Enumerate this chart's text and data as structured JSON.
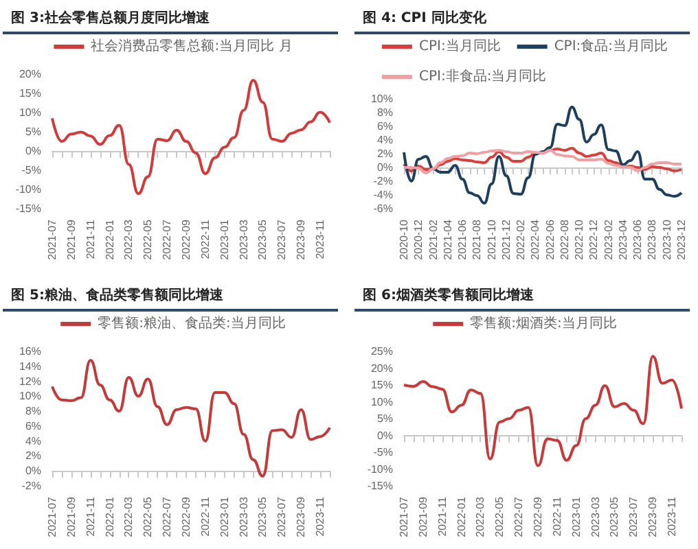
{
  "chart_data": [
    {
      "type": "line",
      "title": "图 3:社会零售总额月度同比增速",
      "legend": "top",
      "marker": "none",
      "categories": [
        "2021-07",
        null,
        "2021-09",
        null,
        "2021-11",
        null,
        "2022-01",
        null,
        "2022-03",
        null,
        "2022-05",
        null,
        "2022-07",
        null,
        "2022-09",
        null,
        "2022-11",
        null,
        "2023-01",
        null,
        "2023-03",
        null,
        "2023-05",
        null,
        "2023-07",
        null,
        "2023-09",
        null,
        "2023-11",
        null
      ],
      "ylim": [
        -15,
        20
      ],
      "yticks": [
        {
          "value": -15,
          "label": "-15%"
        },
        {
          "value": -10,
          "label": "-10%"
        },
        {
          "value": -5,
          "label": "-5%"
        },
        {
          "value": 0,
          "label": "0%"
        },
        {
          "value": 5,
          "label": "5%"
        },
        {
          "value": 10,
          "label": "10%"
        },
        {
          "value": 15,
          "label": "15%"
        },
        {
          "value": 20,
          "label": "20%"
        }
      ],
      "series": [
        {
          "name": "社会消费品零售总额:当月同比 月",
          "color": "#d03c3c",
          "values": [
            8.5,
            2.5,
            4.4,
            4.9,
            3.9,
            1.7,
            4.0,
            6.7,
            -3.5,
            -11.1,
            -6.7,
            3.1,
            2.7,
            5.4,
            2.5,
            -0.5,
            -5.9,
            -1.8,
            1.0,
            3.5,
            10.6,
            18.4,
            12.7,
            3.1,
            2.5,
            4.6,
            5.5,
            7.6,
            10.1,
            7.4
          ]
        }
      ]
    },
    {
      "type": "line",
      "title": "图 4: CPI 同比变化",
      "legend": "top",
      "marker": "none",
      "categories": [
        "2020-10",
        null,
        "2020-12",
        null,
        "2021-02",
        null,
        "2021-04",
        null,
        "2021-06",
        null,
        "2021-08",
        null,
        "2021-10",
        null,
        "2021-12",
        null,
        "2022-02",
        null,
        "2022-04",
        null,
        "2022-06",
        null,
        "2022-08",
        null,
        "2022-10",
        null,
        "2022-12",
        null,
        "2023-02",
        null,
        "2023-04",
        null,
        "2023-06",
        null,
        "2023-08",
        null,
        "2023-10",
        null,
        "2023-12"
      ],
      "ylim": [
        -6,
        10
      ],
      "yticks": [
        {
          "value": -6,
          "label": "-6%"
        },
        {
          "value": -4,
          "label": "-4%"
        },
        {
          "value": -2,
          "label": "-2%"
        },
        {
          "value": 0,
          "label": "0%"
        },
        {
          "value": 2,
          "label": "2%"
        },
        {
          "value": 4,
          "label": "4%"
        },
        {
          "value": 6,
          "label": "6%"
        },
        {
          "value": 8,
          "label": "8%"
        },
        {
          "value": 10,
          "label": "10%"
        }
      ],
      "series": [
        {
          "name": "CPI:当月同比",
          "color": "#d9403c",
          "values": [
            0.5,
            -0.5,
            0.2,
            -0.3,
            -0.2,
            0.4,
            0.9,
            1.3,
            1.1,
            1.0,
            0.8,
            0.7,
            1.5,
            2.3,
            1.5,
            0.9,
            0.9,
            1.5,
            2.1,
            2.1,
            2.5,
            2.7,
            2.5,
            2.8,
            2.1,
            1.6,
            1.8,
            2.1,
            1.0,
            0.7,
            0.1,
            0.2,
            0.0,
            -0.3,
            0.1,
            0.0,
            -0.2,
            -0.5,
            -0.3
          ]
        },
        {
          "name": "CPI:食品:当月同比",
          "color": "#1f3f5f",
          "values": [
            2.2,
            -2.0,
            1.2,
            1.6,
            -0.2,
            -0.7,
            -0.7,
            0.3,
            -1.7,
            -3.7,
            -4.1,
            -5.2,
            -2.4,
            1.6,
            -1.2,
            -3.8,
            -3.9,
            -1.5,
            1.9,
            2.3,
            2.9,
            6.3,
            6.1,
            8.8,
            7.0,
            3.7,
            4.8,
            6.2,
            2.6,
            2.4,
            0.4,
            1.0,
            2.3,
            -1.7,
            -1.7,
            -3.2,
            -4.0,
            -4.2,
            -3.7
          ]
        },
        {
          "name": "CPI:非食品:当月同比",
          "color": "#f0a0a0",
          "values": [
            0.0,
            0.0,
            -0.1,
            -0.8,
            -0.2,
            0.7,
            1.3,
            1.6,
            1.7,
            2.1,
            2.0,
            2.2,
            2.4,
            2.5,
            2.3,
            2.1,
            2.1,
            2.3,
            2.2,
            2.1,
            2.5,
            1.9,
            1.7,
            1.6,
            1.1,
            1.1,
            1.1,
            1.2,
            0.6,
            0.3,
            0.1,
            0.0,
            -0.5,
            0.0,
            0.5,
            0.7,
            0.7,
            0.5,
            0.5
          ]
        }
      ]
    },
    {
      "type": "line",
      "title": "图 5:粮油、食品类零售额同比增速",
      "legend": "top",
      "marker": "none",
      "categories": [
        "2021-07",
        null,
        "2021-09",
        null,
        "2021-11",
        null,
        "2022-01",
        null,
        "2022-03",
        null,
        "2022-05",
        null,
        "2022-07",
        null,
        "2022-09",
        null,
        "2022-11",
        null,
        "2023-01",
        null,
        "2023-03",
        null,
        "2023-05",
        null,
        "2023-07",
        null,
        "2023-09",
        null,
        "2023-11",
        null
      ],
      "ylim": [
        -2,
        16
      ],
      "yticks": [
        {
          "value": -2,
          "label": "-2%"
        },
        {
          "value": 0,
          "label": "0%"
        },
        {
          "value": 2,
          "label": "2%"
        },
        {
          "value": 4,
          "label": "4%"
        },
        {
          "value": 6,
          "label": "6%"
        },
        {
          "value": 8,
          "label": "8%"
        },
        {
          "value": 10,
          "label": "10%"
        },
        {
          "value": 12,
          "label": "12%"
        },
        {
          "value": 14,
          "label": "14%"
        },
        {
          "value": 16,
          "label": "16%"
        }
      ],
      "series": [
        {
          "name": "零售额:粮油、食品类:当月同比",
          "color": "#c23b3b",
          "values": [
            11.3,
            9.5,
            9.4,
            9.8,
            14.8,
            11.5,
            9.5,
            8.0,
            12.5,
            10.0,
            12.3,
            8.6,
            6.2,
            8.2,
            8.5,
            8.3,
            4.0,
            10.5,
            10.5,
            9.0,
            4.9,
            1.5,
            -0.7,
            5.4,
            5.5,
            4.5,
            8.2,
            4.2,
            4.6,
            5.8
          ]
        }
      ]
    },
    {
      "type": "line",
      "title": "图 6:烟酒类零售额同比增速",
      "legend": "top",
      "marker": "none",
      "categories": [
        "2021-07",
        null,
        "2021-09",
        null,
        "2021-11",
        null,
        "2022-01",
        null,
        "2022-03",
        null,
        "2022-05",
        null,
        "2022-07",
        null,
        "2022-09",
        null,
        "2022-11",
        null,
        "2023-01",
        null,
        "2023-03",
        null,
        "2023-05",
        null,
        "2023-07",
        null,
        "2023-09",
        null,
        "2023-11",
        null
      ],
      "ylim": [
        -15,
        25
      ],
      "yticks": [
        {
          "value": -15,
          "label": "-15%"
        },
        {
          "value": -10,
          "label": "-10%"
        },
        {
          "value": -5,
          "label": "-5%"
        },
        {
          "value": 0,
          "label": "0%"
        },
        {
          "value": 5,
          "label": "5%"
        },
        {
          "value": 10,
          "label": "10%"
        },
        {
          "value": 15,
          "label": "15%"
        },
        {
          "value": 20,
          "label": "20%"
        },
        {
          "value": 25,
          "label": "25%"
        }
      ],
      "series": [
        {
          "name": "零售额:烟酒类:当月同比",
          "color": "#c83a3a",
          "values": [
            15.0,
            14.6,
            16.0,
            14.5,
            13.8,
            7.0,
            9.0,
            13.5,
            12.5,
            -7.0,
            4.0,
            5.0,
            7.5,
            8.3,
            -9.0,
            -1.0,
            -1.5,
            -7.4,
            -3.0,
            5.0,
            9.0,
            14.8,
            8.5,
            9.5,
            7.5,
            3.5,
            23.5,
            15.5,
            16.5,
            8.0
          ]
        }
      ]
    }
  ]
}
